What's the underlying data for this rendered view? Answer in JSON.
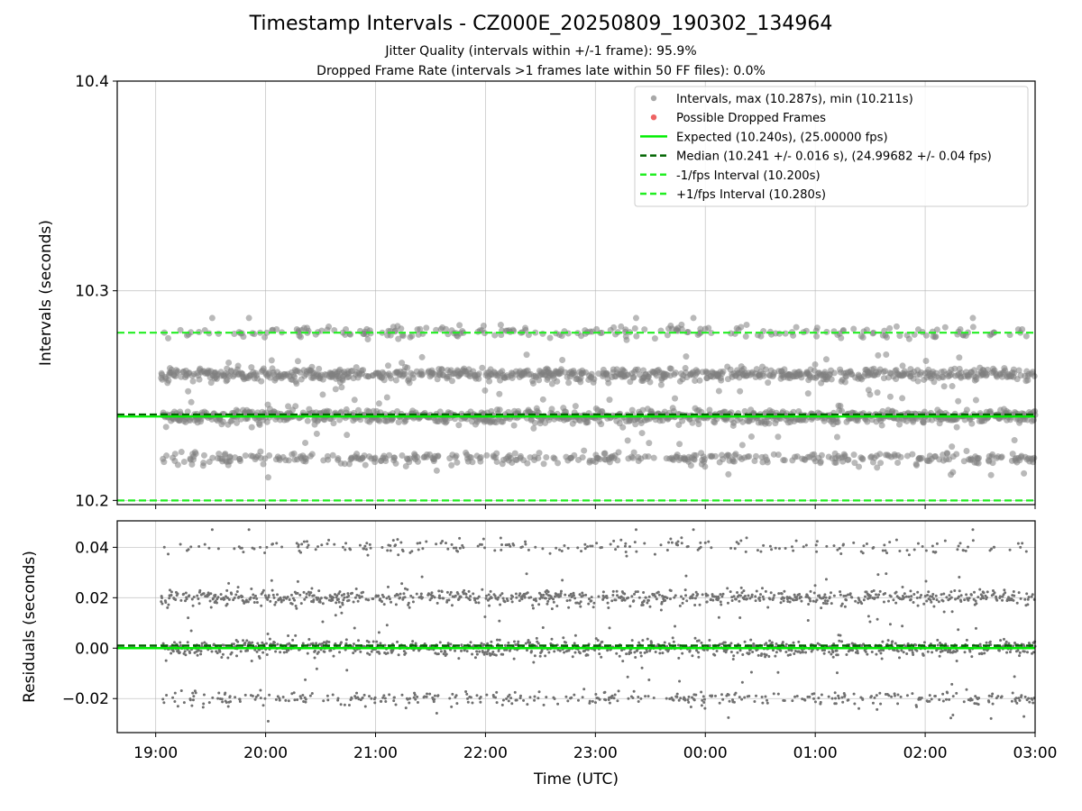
{
  "title": "Timestamp Intervals - CZ000E_20250809_190302_134964",
  "subtitles": [
    "Jitter Quality (intervals within +/-1 frame): 95.9%",
    "Dropped Frame Rate (intervals >1 frames late within 50 FF files): 0.0%"
  ],
  "chart_data": [
    {
      "type": "scatter",
      "ylabel": "Intervals (seconds)",
      "xlabel": "",
      "ylim": [
        10.198,
        10.4
      ],
      "yticks": [
        10.2,
        10.3,
        10.4
      ],
      "ytick_labels": [
        "10.2",
        "10.3",
        "10.4"
      ],
      "x_range_utc": [
        "2025-08-09 18:39",
        "2025-08-10 03:00"
      ],
      "grid": true,
      "legend_position": "top-right",
      "legend": [
        {
          "label": "Intervals, max (10.287s), min (10.211s)",
          "kind": "dot",
          "color": "#9e9e9e"
        },
        {
          "label": "Possible Dropped Frames",
          "kind": "dot",
          "color": "#ee6363"
        },
        {
          "label": "Expected (10.240s), (25.00000 fps)",
          "kind": "line",
          "color": "#00ee00",
          "dash": false
        },
        {
          "label": "Median (10.241 +/- 0.016 s), (24.99682 +/- 0.04 fps)",
          "kind": "line",
          "color": "#006400",
          "dash": true
        },
        {
          "label": "-1/fps Interval (10.200s)",
          "kind": "line",
          "color": "#22ee22",
          "dash": true
        },
        {
          "label": "+1/fps Interval (10.280s)",
          "kind": "line",
          "color": "#22ee22",
          "dash": true
        }
      ],
      "series": [
        {
          "role": "intervals",
          "x_start": "2025-08-09 19:03",
          "x_end": "2025-08-10 03:00",
          "level_values": [
            10.22,
            10.24,
            10.26,
            10.28
          ],
          "level_weights": [
            0.16,
            0.38,
            0.36,
            0.1
          ],
          "spread": 0.0015,
          "max": 10.287,
          "min": 10.211,
          "color": "#808080"
        },
        {
          "role": "dropped_frames",
          "values": [],
          "color": "#ee6363"
        }
      ],
      "reference_lines": [
        {
          "name": "expected",
          "y": 10.24,
          "color": "#00ee00",
          "dash": false
        },
        {
          "name": "median",
          "y": 10.241,
          "color": "#006400",
          "dash": true
        },
        {
          "name": "minus_one_fps",
          "y": 10.2,
          "color": "#22ee22",
          "dash": true
        },
        {
          "name": "plus_one_fps",
          "y": 10.28,
          "color": "#22ee22",
          "dash": true
        }
      ]
    },
    {
      "type": "scatter",
      "ylabel": "Residuals (seconds)",
      "xlabel": "Time (UTC)",
      "ylim": [
        -0.0335,
        0.0505
      ],
      "yticks": [
        -0.02,
        0.0,
        0.02,
        0.04
      ],
      "ytick_labels": [
        "−0.02",
        "0.00",
        "0.02",
        "0.04"
      ],
      "x_range_utc": [
        "2025-08-09 18:39",
        "2025-08-10 03:00"
      ],
      "xtick_labels": [
        "19:00",
        "20:00",
        "21:00",
        "22:00",
        "23:00",
        "00:00",
        "01:00",
        "02:00",
        "03:00"
      ],
      "grid": true,
      "series": [
        {
          "role": "residuals",
          "x_start": "2025-08-09 19:03",
          "x_end": "2025-08-10 03:00",
          "level_values": [
            -0.02,
            0.0,
            0.02,
            0.04
          ],
          "level_weights": [
            0.16,
            0.38,
            0.36,
            0.1
          ],
          "spread": 0.0015,
          "color": "#707070"
        }
      ],
      "reference_lines": [
        {
          "name": "zero",
          "y": 0.0,
          "color": "#00ee00",
          "dash": false
        },
        {
          "name": "median_residual",
          "y": 0.001,
          "color": "#006400",
          "dash": true
        }
      ]
    }
  ]
}
